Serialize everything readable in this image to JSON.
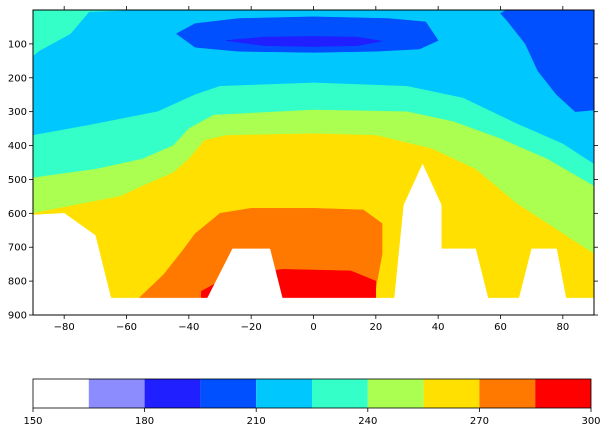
{
  "chart_data": {
    "type": "contour",
    "title": "",
    "xlabel": "",
    "ylabel": "",
    "xlim": [
      -90,
      90
    ],
    "ylim": [
      900,
      0
    ],
    "y_axis_inverted": true,
    "x_ticks": [
      -80,
      -60,
      -40,
      -20,
      0,
      20,
      40,
      60,
      80
    ],
    "x_tick_labels": [
      "−80",
      "−60",
      "−40",
      "−20",
      "0",
      "20",
      "40",
      "60",
      "80"
    ],
    "y_ticks": [
      100,
      200,
      300,
      400,
      500,
      600,
      700,
      800,
      900
    ],
    "y_tick_labels": [
      "100",
      "200",
      "300",
      "400",
      "500",
      "600",
      "700",
      "800",
      "900"
    ],
    "masked_color": "#ffffff",
    "levels": [
      150,
      165,
      180,
      195,
      210,
      225,
      240,
      255,
      270,
      285,
      300
    ],
    "level_colors": [
      "#ffffff",
      "#8c8cff",
      "#1f1fff",
      "#0050ff",
      "#00c8ff",
      "#35ffc8",
      "#aaff50",
      "#ffe000",
      "#ff7800",
      "#ff0000"
    ],
    "regions": [
      {
        "name": "band-210-225",
        "level": "210-225",
        "color": "#00c8ff",
        "polygon": [
          [
            -90,
            0
          ],
          [
            90,
            0
          ],
          [
            90,
            900
          ],
          [
            -90,
            900
          ]
        ]
      },
      {
        "name": "band-225-240-top-left",
        "level": "225-240",
        "color": "#35ffc8",
        "polygon": [
          [
            -90,
            0
          ],
          [
            -58,
            0
          ],
          [
            -72,
            5
          ],
          [
            -78,
            70
          ],
          [
            -88,
            120
          ],
          [
            -90,
            135
          ]
        ]
      },
      {
        "name": "band-225-240-main",
        "level": "225-240",
        "color": "#35ffc8",
        "polygon": [
          [
            -90,
            370
          ],
          [
            -72,
            340
          ],
          [
            -50,
            300
          ],
          [
            -38,
            250
          ],
          [
            -30,
            225
          ],
          [
            0,
            215
          ],
          [
            30,
            225
          ],
          [
            48,
            260
          ],
          [
            65,
            335
          ],
          [
            80,
            395
          ],
          [
            90,
            455
          ],
          [
            90,
            900
          ],
          [
            -90,
            900
          ]
        ]
      },
      {
        "name": "band-240-255",
        "level": "240-255",
        "color": "#aaff50",
        "polygon": [
          [
            -90,
            495
          ],
          [
            -70,
            470
          ],
          [
            -55,
            440
          ],
          [
            -45,
            400
          ],
          [
            -40,
            350
          ],
          [
            -32,
            310
          ],
          [
            0,
            295
          ],
          [
            30,
            300
          ],
          [
            45,
            330
          ],
          [
            60,
            380
          ],
          [
            75,
            440
          ],
          [
            90,
            520
          ],
          [
            90,
            900
          ],
          [
            -90,
            900
          ]
        ]
      },
      {
        "name": "band-255-270",
        "level": "255-270",
        "color": "#ffe000",
        "polygon": [
          [
            -90,
            600
          ],
          [
            -62,
            550
          ],
          [
            -55,
            520
          ],
          [
            -45,
            480
          ],
          [
            -40,
            440
          ],
          [
            -35,
            385
          ],
          [
            -28,
            370
          ],
          [
            0,
            365
          ],
          [
            20,
            370
          ],
          [
            38,
            410
          ],
          [
            52,
            470
          ],
          [
            65,
            570
          ],
          [
            90,
            720
          ],
          [
            90,
            900
          ],
          [
            -90,
            900
          ]
        ]
      },
      {
        "name": "band-270-285",
        "level": "270-285",
        "color": "#ff7800",
        "polygon": [
          [
            -56,
            850
          ],
          [
            -48,
            780
          ],
          [
            -42,
            710
          ],
          [
            -38,
            660
          ],
          [
            -30,
            600
          ],
          [
            -20,
            585
          ],
          [
            0,
            585
          ],
          [
            16,
            590
          ],
          [
            22,
            630
          ],
          [
            22,
            720
          ],
          [
            20,
            820
          ],
          [
            18,
            850
          ]
        ]
      },
      {
        "name": "band-285-300",
        "level": "285-300",
        "color": "#ff0000",
        "polygon": [
          [
            -36,
            850
          ],
          [
            -36,
            830
          ],
          [
            -28,
            790
          ],
          [
            -10,
            765
          ],
          [
            12,
            770
          ],
          [
            20,
            800
          ],
          [
            20,
            850
          ]
        ]
      },
      {
        "name": "band-195-210",
        "level": "195-210",
        "color": "#0050ff",
        "polygon": [
          [
            -44,
            70
          ],
          [
            -38,
            40
          ],
          [
            -24,
            25
          ],
          [
            0,
            20
          ],
          [
            24,
            25
          ],
          [
            36,
            35
          ],
          [
            40,
            90
          ],
          [
            34,
            115
          ],
          [
            20,
            122
          ],
          [
            0,
            125
          ],
          [
            -24,
            122
          ],
          [
            -38,
            110
          ]
        ]
      },
      {
        "name": "band-195-210-top-right",
        "level": "195-210",
        "color": "#0050ff",
        "polygon": [
          [
            62,
            0
          ],
          [
            90,
            0
          ],
          [
            90,
            295
          ],
          [
            84,
            300
          ],
          [
            78,
            250
          ],
          [
            72,
            180
          ],
          [
            68,
            100
          ],
          [
            62,
            30
          ],
          [
            60,
            10
          ]
        ]
      },
      {
        "name": "band-180-195",
        "level": "180-195",
        "color": "#1f1fff",
        "polygon": [
          [
            -28,
            90
          ],
          [
            -16,
            80
          ],
          [
            0,
            78
          ],
          [
            14,
            80
          ],
          [
            22,
            92
          ],
          [
            14,
            105
          ],
          [
            0,
            108
          ],
          [
            -16,
            105
          ]
        ]
      },
      {
        "name": "masked-left-terrain",
        "level": "masked",
        "color": "#ffffff",
        "polygon": [
          [
            -90,
            900
          ],
          [
            -90,
            605
          ],
          [
            -80,
            600
          ],
          [
            -70,
            665
          ],
          [
            -65,
            850
          ],
          [
            -90,
            850
          ]
        ]
      },
      {
        "name": "masked-center-terrain",
        "level": "masked",
        "color": "#ffffff",
        "polygon": [
          [
            -34,
            900
          ],
          [
            -34,
            850
          ],
          [
            -26,
            705
          ],
          [
            -14,
            705
          ],
          [
            -10,
            850
          ],
          [
            -10,
            900
          ]
        ]
      },
      {
        "name": "masked-right-terrain",
        "level": "masked",
        "color": "#ffffff",
        "polygon": [
          [
            26,
            900
          ],
          [
            26,
            850
          ],
          [
            29,
            575
          ],
          [
            35,
            455
          ],
          [
            41,
            575
          ],
          [
            41,
            705
          ],
          [
            52,
            705
          ],
          [
            56,
            850
          ],
          [
            56,
            900
          ]
        ]
      },
      {
        "name": "masked-far-right-terrain",
        "level": "masked",
        "color": "#ffffff",
        "polygon": [
          [
            66,
            900
          ],
          [
            66,
            850
          ],
          [
            70,
            705
          ],
          [
            78,
            705
          ],
          [
            81,
            850
          ],
          [
            81,
            900
          ]
        ]
      },
      {
        "name": "masked-bottom-strip",
        "level": "masked",
        "color": "#ffffff",
        "polygon": [
          [
            -90,
            850
          ],
          [
            90,
            850
          ],
          [
            90,
            900
          ],
          [
            -90,
            900
          ]
        ]
      }
    ],
    "colorbar": {
      "orientation": "horizontal",
      "range": [
        150,
        300
      ],
      "ticks": [
        150,
        180,
        210,
        240,
        270,
        300
      ],
      "tick_labels": [
        "150",
        "180",
        "210",
        "240",
        "270",
        "300"
      ]
    }
  }
}
